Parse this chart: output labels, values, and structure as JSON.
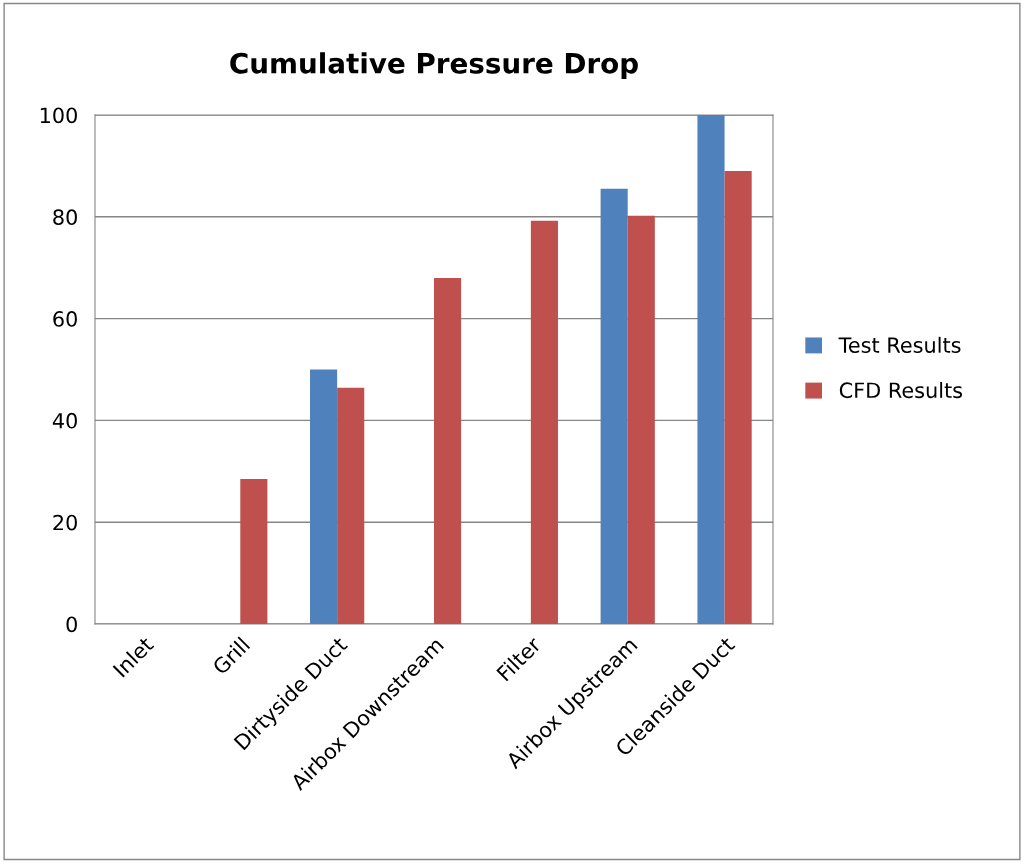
{
  "chart_data": {
    "type": "bar",
    "title": "Cumulative Pressure Drop",
    "categories": [
      "Inlet",
      "Grill",
      "Dirtyside Duct",
      "Airbox Downstream",
      "Filter",
      "Airbox Upstream",
      "Cleanside Duct"
    ],
    "series": [
      {
        "name": "Test Results",
        "color": "#4f81bd",
        "values": [
          0,
          null,
          50,
          null,
          null,
          85.5,
          100
        ]
      },
      {
        "name": "CFD Results",
        "color": "#c0504d",
        "values": [
          0,
          28.5,
          46.4,
          68,
          79.2,
          80.2,
          89
        ]
      }
    ],
    "ylim": [
      0,
      100
    ],
    "yticks": [
      0,
      20,
      40,
      60,
      80,
      100
    ],
    "grid": "y",
    "legend": "right"
  }
}
